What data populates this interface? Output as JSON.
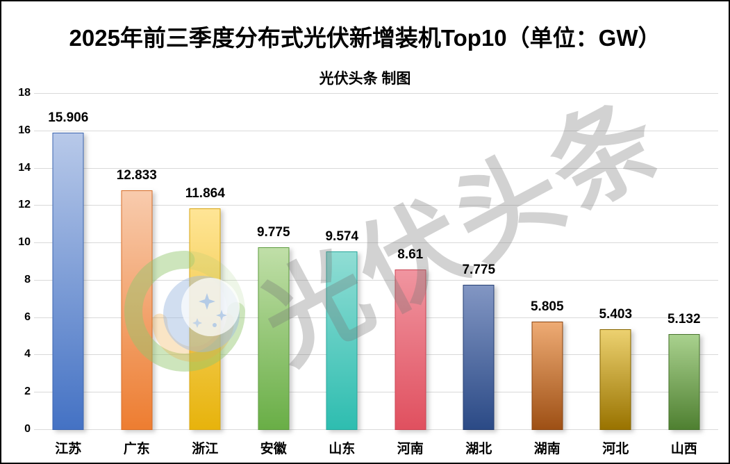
{
  "header": {
    "title": "2025年前三季度分布式光伏新增装机Top10（单位：GW）",
    "subtitle": "光伏头条 制图"
  },
  "watermark": {
    "diagonal_text": "光伏头条",
    "text_color": "rgba(118,118,118,0.33)",
    "logo": "pv-headline-circular-logo"
  },
  "colors": {
    "background": "#ffffff",
    "frame_border": "#000000",
    "gridline": "#d9d9d9",
    "text": "#000000"
  },
  "chart_data": {
    "type": "bar",
    "title": "2025年前三季度分布式光伏新增装机Top10（单位：GW）",
    "subtitle": "光伏头条 制图",
    "unit": "GW",
    "xlabel": "",
    "ylabel": "",
    "ylim": [
      0,
      18
    ],
    "ytick_step": 2,
    "yticks": [
      0,
      2,
      4,
      6,
      8,
      10,
      12,
      14,
      16,
      18
    ],
    "grid": "horizontal",
    "legend": "none",
    "categories": [
      "江苏",
      "广东",
      "浙江",
      "安徽",
      "山东",
      "河南",
      "湖北",
      "湖南",
      "河北",
      "山西"
    ],
    "values": [
      15.906,
      12.833,
      11.864,
      9.775,
      9.574,
      8.61,
      7.775,
      5.805,
      5.403,
      5.132
    ],
    "value_labels": [
      "15.906",
      "12.833",
      "11.864",
      "9.775",
      "9.574",
      "8.61",
      "7.775",
      "5.805",
      "5.403",
      "5.132"
    ],
    "bar_styles": [
      {
        "top": "#b8c9e9",
        "bottom": "#4472c4",
        "border": "#3d66b0"
      },
      {
        "top": "#f8cbad",
        "bottom": "#ed7d31",
        "border": "#d86d26"
      },
      {
        "top": "#ffe596",
        "bottom": "#e7b30c",
        "border": "#d9a612"
      },
      {
        "top": "#c0dfa8",
        "bottom": "#69ae46",
        "border": "#5d9c3e"
      },
      {
        "top": "#90ddd4",
        "bottom": "#2ebdb0",
        "border": "#26a89c"
      },
      {
        "top": "#f095a0",
        "bottom": "#e0505f",
        "border": "#cc4453"
      },
      {
        "top": "#8296c3",
        "bottom": "#2b4a86",
        "border": "#263f73"
      },
      {
        "top": "#eeab74",
        "bottom": "#9e5015",
        "border": "#8a4511"
      },
      {
        "top": "#ecd170",
        "bottom": "#997300",
        "border": "#876500"
      },
      {
        "top": "#a9d18e",
        "bottom": "#4f8031",
        "border": "#46722b"
      }
    ]
  }
}
